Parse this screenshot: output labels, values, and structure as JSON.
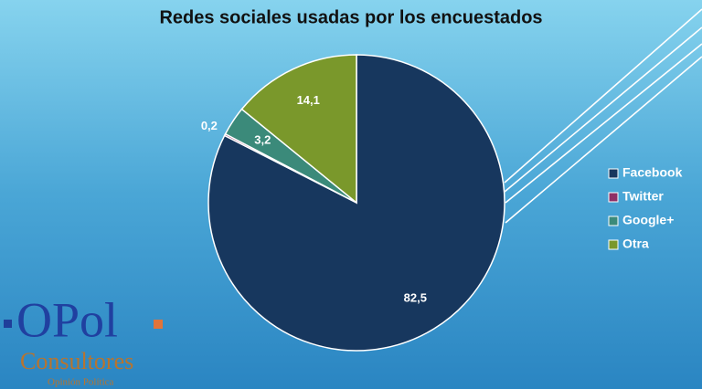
{
  "chart_data": {
    "type": "pie",
    "title": "Redes sociales usadas por los encuestados",
    "categories": [
      "Facebook",
      "Twitter",
      "Google+",
      "Otra"
    ],
    "values": [
      82.5,
      0.2,
      3.2,
      14.1
    ],
    "value_labels": [
      "82,5",
      "0,2",
      "3,2",
      "14,1"
    ],
    "colors": [
      "#17375e",
      "#8e2f66",
      "#3b8a7a",
      "#7a982b"
    ],
    "legend": "right"
  },
  "logo": {
    "name": "OPol",
    "company": "Consultores",
    "tagline": "Opinión Política"
  }
}
